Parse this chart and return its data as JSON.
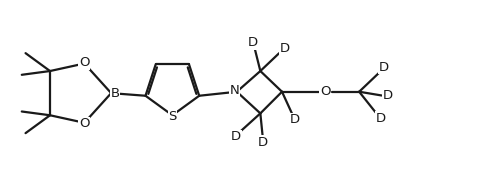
{
  "background": "#ffffff",
  "line_color": "#1a1a1a",
  "line_width": 1.6,
  "font_size": 9.5,
  "fig_width": 5.0,
  "fig_height": 1.91,
  "xlim": [
    0,
    10
  ],
  "ylim": [
    0,
    4
  ]
}
